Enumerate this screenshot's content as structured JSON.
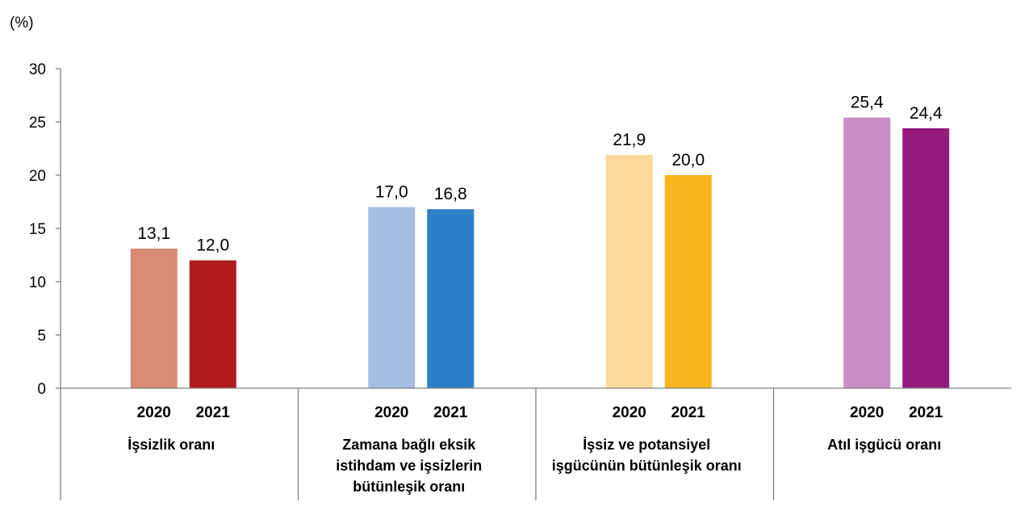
{
  "chart_data": {
    "type": "bar",
    "unit_label": "(%)",
    "ylim": [
      0,
      30
    ],
    "yticks": [
      0,
      5,
      10,
      15,
      20,
      25,
      30
    ],
    "grid": false,
    "groups": [
      {
        "label_lines": [
          "İşsizlik oranı"
        ],
        "bars": [
          {
            "year": "2020",
            "value": 13.1,
            "value_label": "13,1",
            "color": "#D98B73"
          },
          {
            "year": "2021",
            "value": 12.0,
            "value_label": "12,0",
            "color": "#B01B1B"
          }
        ]
      },
      {
        "label_lines": [
          "Zamana bağlı eksik",
          "istihdam ve işsizlerin",
          "bütünleşik oranı"
        ],
        "bars": [
          {
            "year": "2020",
            "value": 17.0,
            "value_label": "17,0",
            "color": "#A6BEE3"
          },
          {
            "year": "2021",
            "value": 16.8,
            "value_label": "16,8",
            "color": "#2A7FC5"
          }
        ]
      },
      {
        "label_lines": [
          "İşsiz ve potansiyel",
          "işgücünün bütünleşik oranı"
        ],
        "bars": [
          {
            "year": "2020",
            "value": 21.9,
            "value_label": "21,9",
            "color": "#FCD99A"
          },
          {
            "year": "2021",
            "value": 20.0,
            "value_label": "20,0",
            "color": "#F9B51E"
          }
        ]
      },
      {
        "label_lines": [
          "Atıl işgücü oranı"
        ],
        "bars": [
          {
            "year": "2020",
            "value": 25.4,
            "value_label": "25,4",
            "color": "#C98DC4"
          },
          {
            "year": "2021",
            "value": 24.4,
            "value_label": "24,4",
            "color": "#951A7E"
          }
        ]
      }
    ]
  }
}
